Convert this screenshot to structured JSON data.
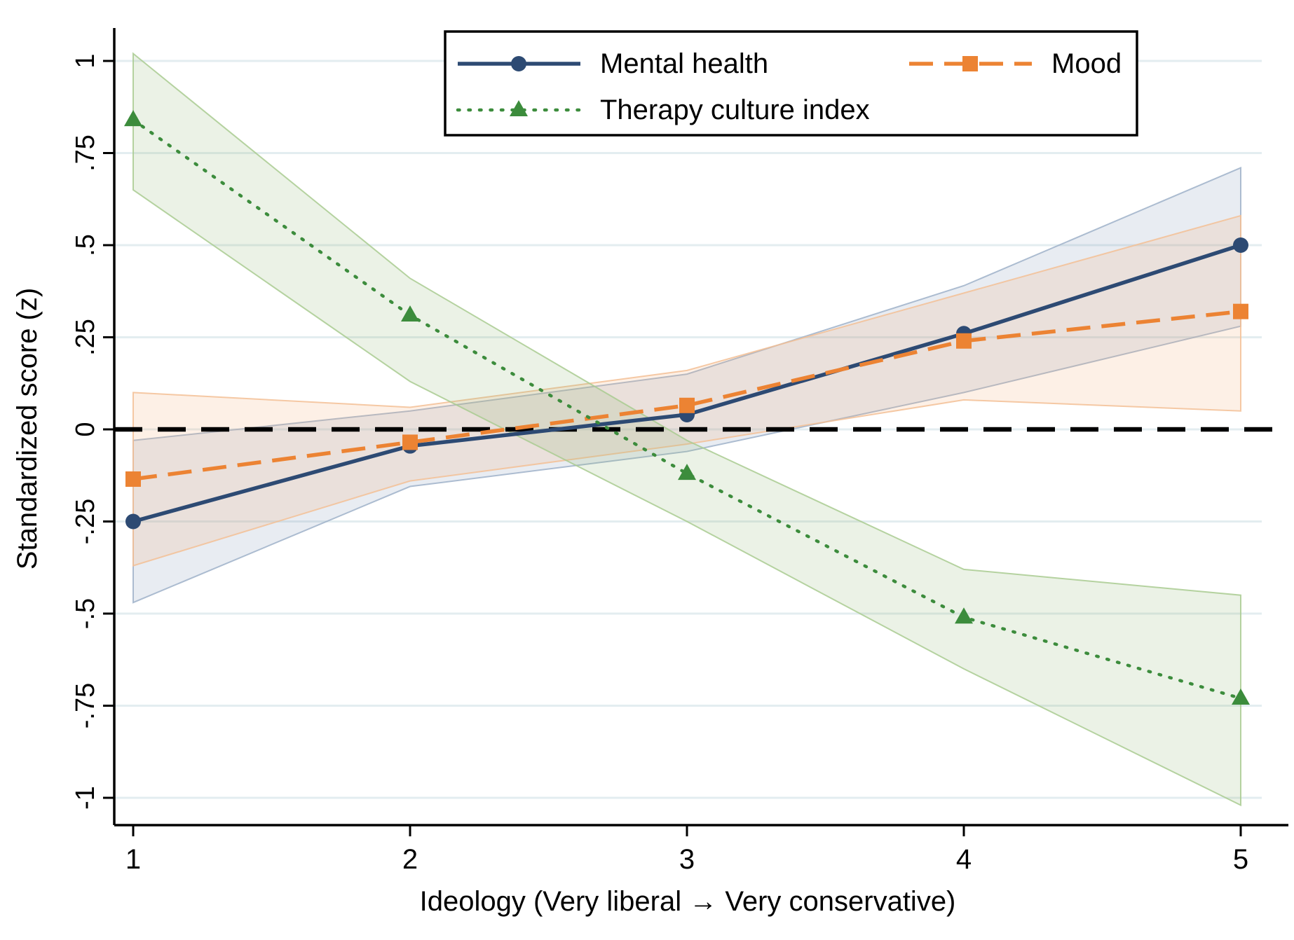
{
  "figure": {
    "background": "#ffffff",
    "gridline_color": "#e3edf0",
    "axis_color": "#000000"
  },
  "axes": {
    "x_title": "Ideology (Very liberal → Very conservative)",
    "y_title": "Standardized score (z)",
    "x_tick_labels": [
      "1",
      "2",
      "3",
      "4",
      "5"
    ],
    "x_tick_values": [
      1,
      2,
      3,
      4,
      5
    ],
    "y_tick_labels": [
      "1",
      ".75",
      ".5",
      ".25",
      "0",
      "-.25",
      "-.5",
      "-.75",
      "-1"
    ],
    "y_tick_values": [
      1,
      0.75,
      0.5,
      0.25,
      0,
      -0.25,
      -0.5,
      -0.75,
      -1
    ],
    "xlim": [
      1,
      5
    ],
    "ylim": [
      -1,
      1
    ],
    "grid": "horizontal only"
  },
  "chart_data": {
    "type": "line",
    "x": [
      1,
      2,
      3,
      4,
      5
    ],
    "title": "",
    "xlabel": "Ideology (Very liberal → Very conservative)",
    "ylabel": "Standardized score (z)",
    "legend_position": "top center, two columns, boxed",
    "zero_line": {
      "y": 0,
      "style": "long-dash",
      "color": "#000000"
    },
    "series": [
      {
        "name": "Mental health",
        "color": "#2d4a73",
        "line_style": "solid",
        "marker": "circle",
        "values": [
          -0.25,
          -0.045,
          0.04,
          0.26,
          0.5
        ],
        "ci_low": [
          -0.47,
          -0.155,
          -0.06,
          0.1,
          0.28
        ],
        "ci_high": [
          -0.03,
          0.05,
          0.15,
          0.39,
          0.71
        ],
        "band_fill": "#8298b8",
        "band_edge": "#9fb1c9"
      },
      {
        "name": "Mood",
        "color": "#ec8333",
        "line_style": "dashed",
        "marker": "square",
        "values": [
          -0.135,
          -0.035,
          0.065,
          0.24,
          0.32
        ],
        "ci_low": [
          -0.37,
          -0.14,
          -0.04,
          0.08,
          0.05
        ],
        "ci_high": [
          0.1,
          0.06,
          0.16,
          0.37,
          0.58
        ],
        "band_fill": "#f2ad72",
        "band_edge": "#f3c095"
      },
      {
        "name": "Therapy culture index",
        "color": "#3c8c3c",
        "line_style": "dotted",
        "marker": "triangle",
        "values": [
          0.84,
          0.31,
          -0.12,
          -0.51,
          -0.73
        ],
        "ci_low": [
          0.65,
          0.13,
          -0.25,
          -0.65,
          -1.02
        ],
        "ci_high": [
          1.02,
          0.41,
          -0.03,
          -0.38,
          -0.45
        ],
        "band_fill": "#8fb977",
        "band_edge": "#a9cb90"
      }
    ]
  }
}
